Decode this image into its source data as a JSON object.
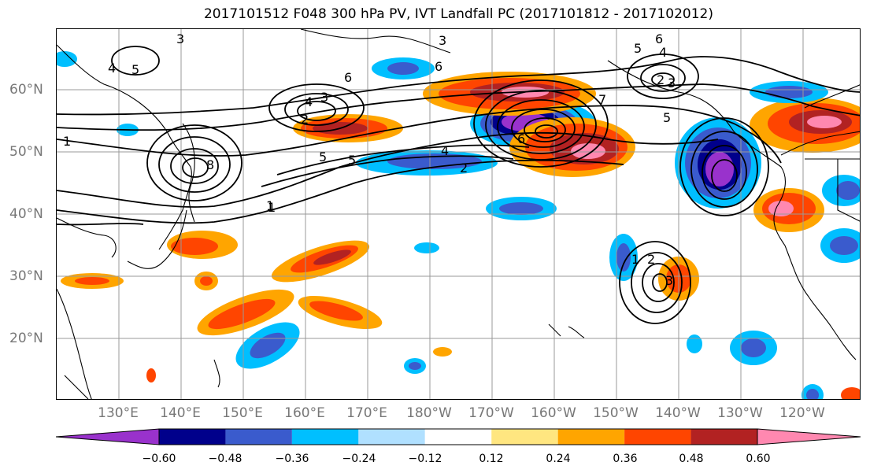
{
  "title": "2017101512 F048 300 hPa PV, IVT Landfall PC (2017101812 - 2017102012)",
  "lat_labels": [
    "60°N",
    "50°N",
    "40°N",
    "30°N",
    "20°N"
  ],
  "lon_labels": [
    "130°E",
    "140°E",
    "150°E",
    "160°E",
    "170°E",
    "180°W",
    "170°W",
    "160°W",
    "150°W",
    "140°W",
    "130°W",
    "120°W"
  ],
  "colorbar": {
    "colors": [
      "#9932cc",
      "#00008b",
      "#3a5bcd",
      "#00bfff",
      "#b0e0ff",
      "#ffffff",
      "#ffe680",
      "#ffa500",
      "#ff4500",
      "#b22222",
      "#ff88b0"
    ],
    "tick_labels": [
      "−0.60",
      "−0.48",
      "−0.36",
      "−0.24",
      "−0.12",
      "0.12",
      "0.24",
      "0.36",
      "0.48",
      "0.60"
    ]
  },
  "contour_labels": [
    "3",
    "4",
    "5",
    "1",
    "6",
    "3",
    "4",
    "5",
    "1",
    "2",
    "6",
    "5",
    "4",
    "2",
    "3",
    "6",
    "7",
    "5",
    "4",
    "2",
    "3",
    "6",
    "1",
    "2",
    "3",
    "1",
    "8",
    "5"
  ]
}
